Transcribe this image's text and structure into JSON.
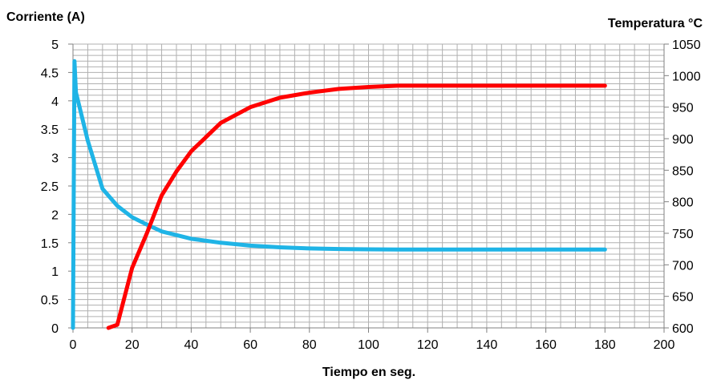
{
  "chart_data": {
    "type": "line",
    "title": "",
    "xlabel": "Tiempo en seg.",
    "ylabel_left": "Corriente (A)",
    "ylabel_right": "Temperatura °C",
    "xlim": [
      0,
      200
    ],
    "ylim_left": [
      0,
      5
    ],
    "ylim_right": [
      600,
      1050
    ],
    "x_ticks": [
      0,
      20,
      40,
      60,
      80,
      100,
      120,
      140,
      160,
      180,
      200
    ],
    "y_left_ticks": [
      "0",
      "0.5",
      "1",
      "1.5",
      "2",
      "2.5",
      "3",
      "3.5",
      "4",
      "4.5",
      "5"
    ],
    "y_right_ticks": [
      "600",
      "650",
      "700",
      "750",
      "800",
      "850",
      "900",
      "950",
      "1000",
      "1050"
    ],
    "grid": true,
    "legend": "none",
    "series": [
      {
        "axis": "left",
        "color": "#1fb4e6",
        "x": [
          0,
          0.5,
          1,
          5,
          10,
          15,
          20,
          25,
          30,
          40,
          50,
          60,
          70,
          80,
          90,
          100,
          110,
          120,
          130,
          140,
          150,
          160,
          170,
          180
        ],
        "y": [
          0,
          4.7,
          4.15,
          3.3,
          2.45,
          2.15,
          1.95,
          1.82,
          1.7,
          1.57,
          1.5,
          1.45,
          1.42,
          1.4,
          1.39,
          1.385,
          1.38,
          1.38,
          1.38,
          1.38,
          1.38,
          1.38,
          1.38,
          1.38
        ]
      },
      {
        "axis": "right",
        "color": "#ff0000",
        "x": [
          12,
          15,
          20,
          25,
          30,
          35,
          40,
          50,
          60,
          70,
          80,
          90,
          100,
          110,
          120,
          130,
          140,
          150,
          160,
          170,
          180
        ],
        "y": [
          600,
          605,
          695,
          750,
          810,
          848,
          880,
          925,
          950,
          965,
          973,
          979,
          982,
          984,
          984,
          984,
          984,
          984,
          984,
          984,
          984
        ]
      }
    ]
  }
}
